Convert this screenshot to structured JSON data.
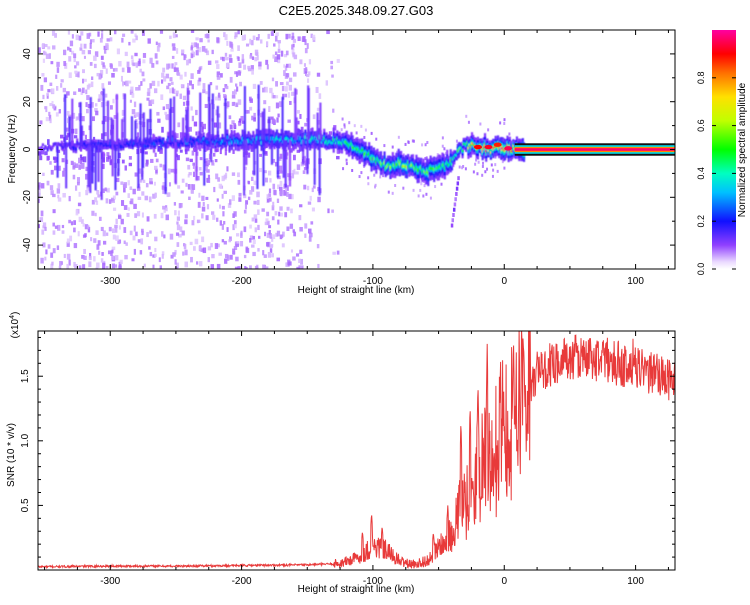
{
  "title": "C2E5.2025.348.09.27.G03",
  "chart_data": [
    {
      "type": "heatmap",
      "title": "C2E5.2025.348.09.27.G03",
      "xlabel": "Height of straight line (km)",
      "ylabel": "Frequency (Hz)",
      "xlim": [
        -355,
        130
      ],
      "ylim": [
        -50,
        50
      ],
      "xticks": [
        -300,
        -200,
        -100,
        0,
        100
      ],
      "xtick_labels": [
        "-300",
        "-200",
        "-100",
        "0",
        "100"
      ],
      "yticks": [
        -40,
        -20,
        0,
        20,
        40
      ],
      "ytick_labels": [
        "-40",
        "-20",
        "0",
        "20",
        "40"
      ],
      "colorbar": {
        "label": "Normalized spectral amplitude",
        "range": [
          0,
          1
        ],
        "ticks": [
          0.0,
          0.2,
          0.4,
          0.6,
          0.8
        ],
        "tick_labels": [
          "0.0",
          "0.2",
          "0.4",
          "0.6",
          "0.8"
        ]
      },
      "ridge_center_hz": [
        [
          -355,
          1
        ],
        [
          -300,
          2
        ],
        [
          -250,
          3
        ],
        [
          -200,
          4
        ],
        [
          -160,
          4
        ],
        [
          -140,
          4
        ],
        [
          -120,
          3
        ],
        [
          -110,
          0
        ],
        [
          -100,
          -4
        ],
        [
          -90,
          -7
        ],
        [
          -80,
          -6
        ],
        [
          -70,
          -7
        ],
        [
          -60,
          -9
        ],
        [
          -50,
          -8
        ],
        [
          -40,
          -5
        ],
        [
          -30,
          2
        ],
        [
          -20,
          1
        ],
        [
          -10,
          0
        ],
        [
          0,
          1
        ],
        [
          10,
          0
        ],
        [
          130,
          0
        ]
      ],
      "ridge_peak_amplitude": [
        [
          -355,
          0.12
        ],
        [
          -300,
          0.2
        ],
        [
          -250,
          0.22
        ],
        [
          -200,
          0.3
        ],
        [
          -150,
          0.35
        ],
        [
          -120,
          0.45
        ],
        [
          -100,
          0.5
        ],
        [
          -80,
          0.55
        ],
        [
          -60,
          0.5
        ],
        [
          -40,
          0.45
        ],
        [
          -30,
          0.55
        ],
        [
          -20,
          0.85
        ],
        [
          -10,
          0.9
        ],
        [
          0,
          0.9
        ],
        [
          20,
          0.97
        ],
        [
          130,
          0.97
        ]
      ]
    },
    {
      "type": "line",
      "xlabel": "Height of straight line (km)",
      "ylabel": "SNR (10 * v/v)",
      "y_multiplier_label": "(x10",
      "y_multiplier_exponent": "4",
      "y_multiplier_close": ")",
      "xlim": [
        -355,
        130
      ],
      "ylim": [
        0,
        18500
      ],
      "xticks": [
        -300,
        -200,
        -100,
        0,
        100
      ],
      "xtick_labels": [
        "-300",
        "-200",
        "-100",
        "0",
        "100"
      ],
      "yticks": [
        5000,
        10000,
        15000
      ],
      "ytick_labels": [
        "0.5",
        "1.0",
        "1.5"
      ],
      "series": [
        {
          "name": "SNR",
          "color": "#e83a3a",
          "trend": [
            [
              -355,
              250
            ],
            [
              -300,
              300
            ],
            [
              -250,
              300
            ],
            [
              -200,
              350
            ],
            [
              -150,
              400
            ],
            [
              -125,
              500
            ],
            [
              -110,
              1000
            ],
            [
              -100,
              1900
            ],
            [
              -90,
              1500
            ],
            [
              -80,
              700
            ],
            [
              -70,
              400
            ],
            [
              -60,
              700
            ],
            [
              -50,
              1800
            ],
            [
              -40,
              3400
            ],
            [
              -30,
              5800
            ],
            [
              -20,
              8400
            ],
            [
              -12,
              9000
            ],
            [
              -5,
              10500
            ],
            [
              0,
              12000
            ],
            [
              10,
              13200
            ],
            [
              20,
              14300
            ],
            [
              30,
              15500
            ],
            [
              40,
              16200
            ],
            [
              60,
              16500
            ],
            [
              80,
              16200
            ],
            [
              100,
              15600
            ],
            [
              120,
              15000
            ],
            [
              130,
              14500
            ]
          ],
          "spikes": [
            [
              -108,
              3000
            ],
            [
              -101,
              4400
            ],
            [
              -93,
              3400
            ],
            [
              -54,
              2900
            ],
            [
              -43,
              5000
            ],
            [
              -33,
              11600
            ],
            [
              -26,
              12800
            ],
            [
              -20,
              14500
            ],
            [
              -13,
              17500
            ],
            [
              -3,
              15400
            ],
            [
              7,
              18100
            ],
            [
              15,
              17300
            ],
            [
              25,
              17600
            ],
            [
              55,
              18300
            ],
            [
              75,
              18400
            ],
            [
              98,
              17900
            ]
          ]
        }
      ]
    }
  ]
}
